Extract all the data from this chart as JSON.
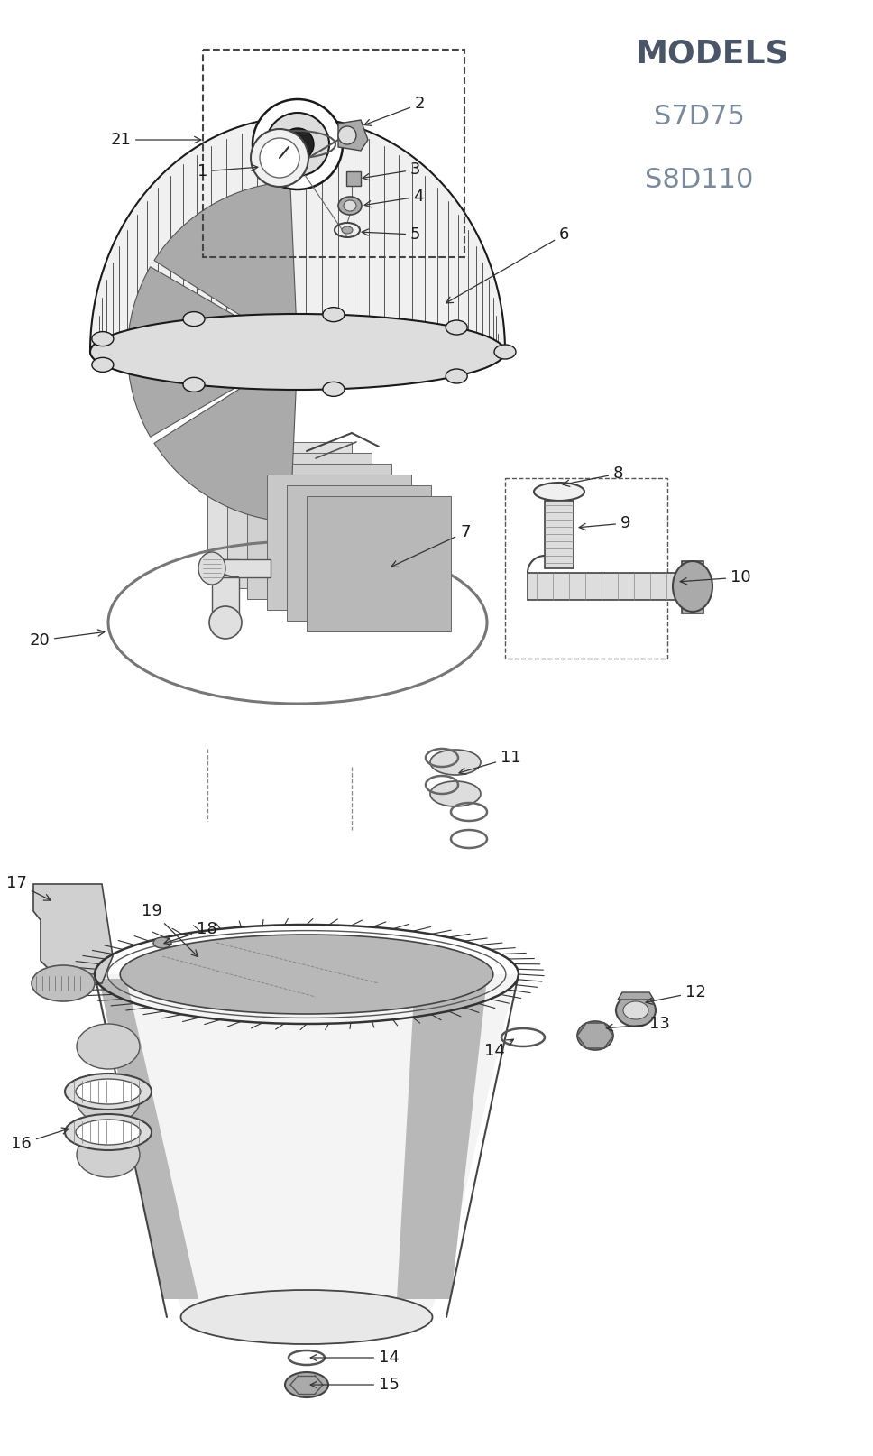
{
  "title": "MODELS",
  "title_color": "#4a5568",
  "title_fontsize": 26,
  "title_bold": true,
  "models": [
    "S7D75",
    "S8D110"
  ],
  "model_color": "#7a8a9a",
  "model_fontsize": 22,
  "bg_color": "#ffffff",
  "label_fontsize": 13,
  "label_color": "#111111",
  "line_color": "#333333",
  "dark": "#1a1a1a",
  "mid": "#888888",
  "light": "#cccccc",
  "lighter": "#e8e8e8",
  "grey1": "#aaaaaa",
  "grey2": "#dddddd",
  "grey3": "#f0f0f0"
}
